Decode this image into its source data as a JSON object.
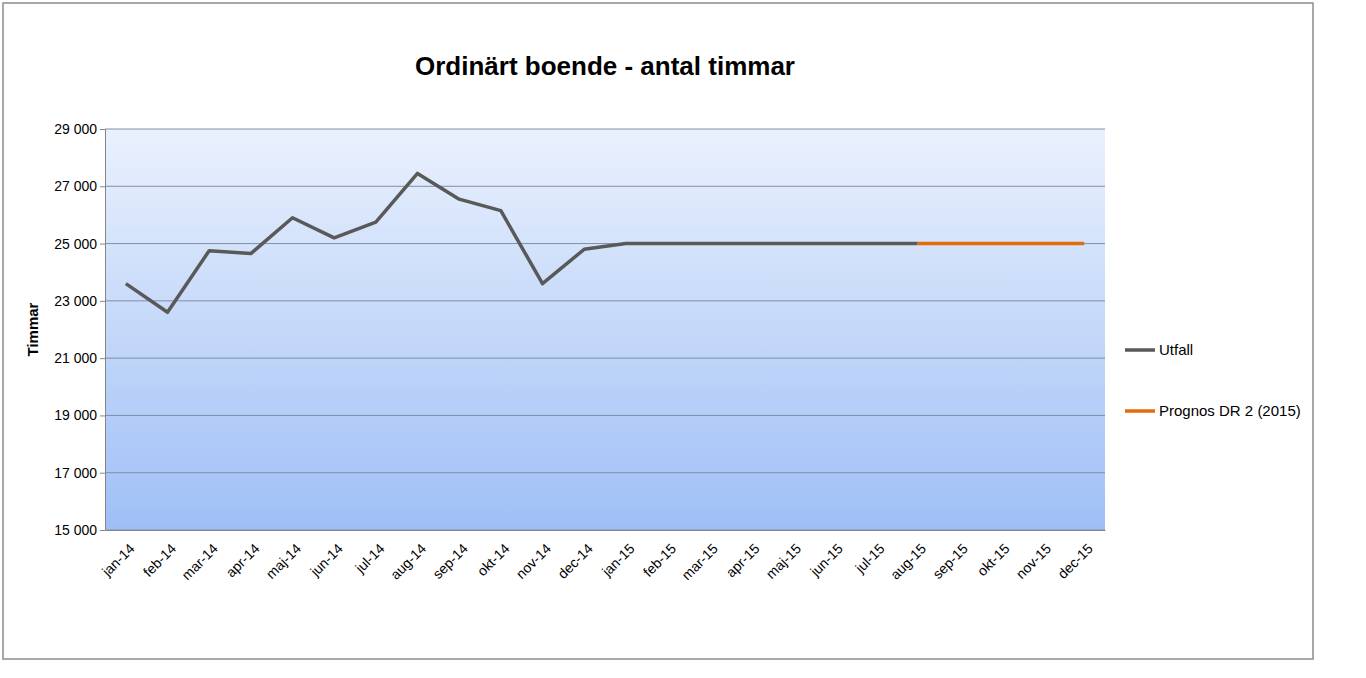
{
  "chart_data": {
    "type": "line",
    "title": "Ordinärt boende - antal timmar",
    "y_label": "Timmar",
    "categories": [
      "jan-14",
      "feb-14",
      "mar-14",
      "apr-14",
      "maj-14",
      "jun-14",
      "jul-14",
      "aug-14",
      "sep-14",
      "okt-14",
      "nov-14",
      "dec-14",
      "jan-15",
      "feb-15",
      "mar-15",
      "apr-15",
      "maj-15",
      "jun-15",
      "jul-15",
      "aug-15",
      "sep-15",
      "okt-15",
      "nov-15",
      "dec-15"
    ],
    "series": [
      {
        "name": "Utfall",
        "color": "#595959",
        "values": [
          23600,
          22600,
          24750,
          24650,
          25900,
          25200,
          25750,
          27450,
          26550,
          26150,
          23600,
          24800,
          25000,
          25000,
          25000,
          25000,
          25000,
          25000,
          25000,
          25000,
          null,
          null,
          null,
          null
        ]
      },
      {
        "name": "Prognos DR 2 (2015)",
        "color": "#e36c0a",
        "values": [
          null,
          null,
          null,
          null,
          null,
          null,
          null,
          null,
          null,
          null,
          null,
          null,
          null,
          null,
          null,
          null,
          null,
          null,
          null,
          25000,
          25000,
          25000,
          25000,
          25000
        ]
      }
    ],
    "ylim": [
      15000,
      29000
    ],
    "yticks": [
      {
        "value": 15000,
        "label": "15 000"
      },
      {
        "value": 17000,
        "label": "17 000"
      },
      {
        "value": 19000,
        "label": "19 000"
      },
      {
        "value": 21000,
        "label": "21 000"
      },
      {
        "value": 23000,
        "label": "23 000"
      },
      {
        "value": 25000,
        "label": "25 000"
      },
      {
        "value": 27000,
        "label": "27 000"
      },
      {
        "value": 29000,
        "label": "29 000"
      }
    ],
    "grid": true,
    "legend": "right"
  }
}
